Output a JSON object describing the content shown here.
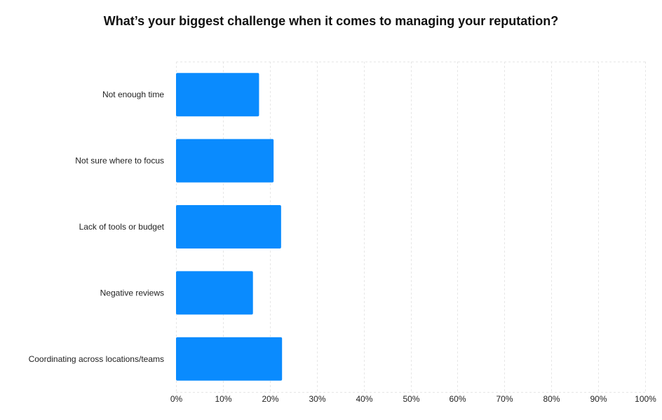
{
  "colors": {
    "bar": "#0a8bfe",
    "grid": "#e6e6e6",
    "text": "#222222"
  },
  "chart_data": {
    "type": "bar",
    "orientation": "horizontal",
    "title": "What’s your biggest challenge when it comes to managing your reputation?",
    "xlabel": "",
    "ylabel": "",
    "categories": [
      "Not enough time",
      "Not sure where to focus",
      "Lack of tools or budget",
      "Negative reviews",
      "Coordinating across locations/teams"
    ],
    "values": [
      17.7,
      20.8,
      22.4,
      16.4,
      22.6
    ],
    "xlim": [
      0,
      100
    ],
    "x_ticks": [
      "0%",
      "10%",
      "20%",
      "30%",
      "40%",
      "50%",
      "60%",
      "70%",
      "80%",
      "90%",
      "100%"
    ],
    "grid": true,
    "legend": "none"
  }
}
